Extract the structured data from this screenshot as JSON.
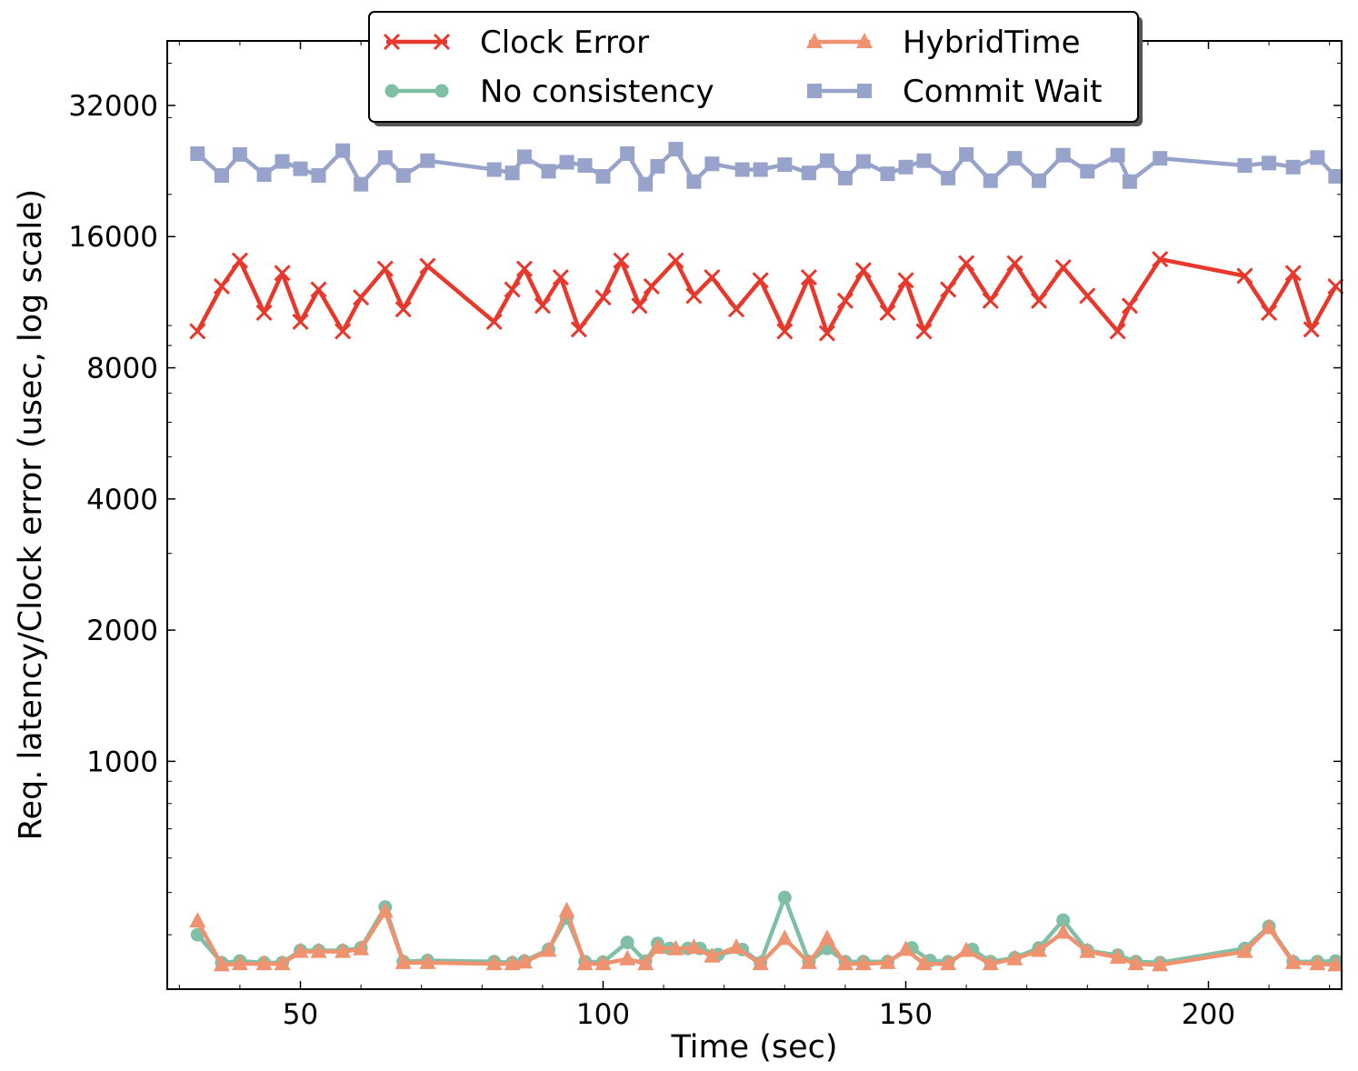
{
  "chart_data": {
    "type": "line",
    "xlabel": "Time (sec)",
    "ylabel": "Req. latency/Clock error (usec, log scale)",
    "y_scale": "log2",
    "xlim": [
      28,
      222
    ],
    "ylim": [
      300,
      45000
    ],
    "x_ticks": [
      50,
      100,
      150,
      200
    ],
    "y_ticks": [
      1000,
      2000,
      4000,
      8000,
      16000,
      32000
    ],
    "grid": false,
    "legend_position": "top-center",
    "series": [
      {
        "name": "Clock Error",
        "color": "#e8382b",
        "marker": "x",
        "x": [
          33,
          37,
          40,
          44,
          47,
          50,
          53,
          57,
          60,
          64,
          67,
          71,
          82,
          85,
          87,
          90,
          93,
          96,
          100,
          103,
          106,
          108,
          112,
          115,
          118,
          122,
          126,
          130,
          134,
          137,
          140,
          143,
          147,
          150,
          153,
          157,
          160,
          164,
          168,
          172,
          176,
          180,
          185,
          187,
          192,
          206,
          210,
          214,
          217,
          221
        ],
        "values": [
          9700,
          12300,
          14100,
          10700,
          13200,
          10200,
          12100,
          9700,
          11600,
          13500,
          10900,
          13700,
          10200,
          12100,
          13500,
          11100,
          12900,
          9800,
          11600,
          14100,
          11100,
          12300,
          14100,
          11700,
          12900,
          10900,
          12700,
          9700,
          12900,
          9600,
          11400,
          13400,
          10700,
          12700,
          9700,
          12100,
          13900,
          11400,
          13900,
          11400,
          13600,
          11700,
          9700,
          11100,
          14200,
          13000,
          10700,
          13200,
          9800,
          12300
        ]
      },
      {
        "name": "No consistency",
        "color": "#7fbfa5",
        "marker": "o",
        "x": [
          33,
          37,
          40,
          44,
          47,
          50,
          53,
          57,
          60,
          64,
          67,
          71,
          82,
          85,
          87,
          91,
          94,
          97,
          100,
          104,
          107,
          109,
          111,
          114,
          116,
          119,
          123,
          126,
          130,
          134,
          137,
          140,
          143,
          147,
          151,
          154,
          157,
          161,
          164,
          168,
          172,
          176,
          180,
          185,
          188,
          192,
          206,
          210,
          214,
          218,
          221
        ],
        "values": [
          400,
          345,
          348,
          345,
          345,
          368,
          368,
          368,
          373,
          463,
          347,
          349,
          347,
          345,
          348,
          370,
          437,
          347,
          346,
          384,
          348,
          382,
          372,
          372,
          372,
          360,
          370,
          345,
          487,
          347,
          372,
          347,
          347,
          347,
          373,
          349,
          347,
          370,
          347,
          354,
          373,
          432,
          368,
          359,
          347,
          345,
          372,
          418,
          347,
          347,
          348
        ]
      },
      {
        "name": "HybridTime",
        "color": "#ef9270",
        "marker": "^",
        "x": [
          33,
          37,
          40,
          44,
          47,
          50,
          53,
          57,
          60,
          64,
          67,
          71,
          82,
          85,
          87,
          91,
          94,
          97,
          100,
          104,
          107,
          109,
          112,
          115,
          118,
          122,
          126,
          130,
          134,
          137,
          140,
          143,
          147,
          150,
          153,
          157,
          160,
          164,
          168,
          172,
          176,
          180,
          185,
          188,
          192,
          206,
          210,
          214,
          218,
          221
        ],
        "values": [
          430,
          341,
          343,
          343,
          343,
          366,
          366,
          366,
          371,
          453,
          345,
          345,
          343,
          343,
          346,
          368,
          454,
          343,
          343,
          352,
          343,
          374,
          371,
          374,
          357,
          374,
          343,
          392,
          345,
          392,
          343,
          343,
          345,
          370,
          343,
          343,
          368,
          343,
          352,
          368,
          405,
          366,
          355,
          343,
          341,
          366,
          415,
          345,
          343,
          341
        ]
      },
      {
        "name": "Commit Wait",
        "color": "#97a3cb",
        "marker": "s",
        "x": [
          33,
          37,
          40,
          44,
          47,
          50,
          53,
          57,
          60,
          64,
          67,
          71,
          82,
          85,
          87,
          91,
          94,
          97,
          100,
          104,
          107,
          109,
          112,
          115,
          118,
          123,
          126,
          130,
          134,
          137,
          140,
          143,
          147,
          150,
          153,
          157,
          160,
          164,
          168,
          172,
          176,
          180,
          185,
          187,
          192,
          206,
          210,
          214,
          218,
          221
        ],
        "values": [
          24800,
          22100,
          24700,
          22200,
          23800,
          22900,
          22100,
          25200,
          21100,
          24300,
          22100,
          23900,
          22800,
          22400,
          24400,
          22600,
          23700,
          23300,
          22000,
          24800,
          21100,
          23200,
          25400,
          21400,
          23500,
          22800,
          22800,
          23400,
          22400,
          23900,
          21800,
          23800,
          22300,
          23100,
          23900,
          21800,
          24700,
          21500,
          24200,
          21500,
          24600,
          22600,
          24600,
          21400,
          24200,
          23300,
          23600,
          23100,
          24300,
          22000
        ]
      }
    ]
  }
}
